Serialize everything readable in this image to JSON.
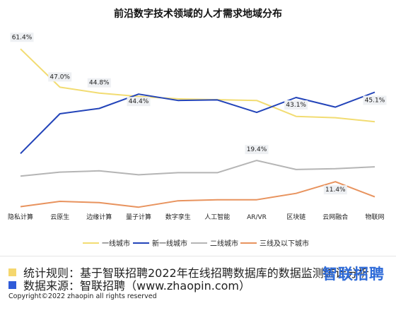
{
  "chart_data": {
    "type": "line",
    "title": "前沿数字技术领域的人才需求地域分布",
    "categories": [
      "隐私计算",
      "云原生",
      "边缘计算",
      "量子计算",
      "数字孪生",
      "人工智能",
      "AR/VR",
      "区块链",
      "云网融合",
      "物联网"
    ],
    "series": [
      {
        "name": "一线城市",
        "color": "#f2dc72",
        "values": [
          61.4,
          47.0,
          44.8,
          43.5,
          42.6,
          42.3,
          42.0,
          36.0,
          35.5,
          34.0
        ]
      },
      {
        "name": "新一线城市",
        "color": "#2344b9",
        "values": [
          22.0,
          37.0,
          39.0,
          44.4,
          42.0,
          42.2,
          37.5,
          43.1,
          39.5,
          45.1
        ]
      },
      {
        "name": "二线城市",
        "color": "#b5b5b5",
        "values": [
          13.5,
          15.0,
          15.5,
          14.0,
          14.8,
          14.8,
          19.4,
          16.0,
          16.3,
          17.0
        ]
      },
      {
        "name": "三线及以下城市",
        "color": "#e8935e",
        "values": [
          2.0,
          4.0,
          3.5,
          1.8,
          4.2,
          4.6,
          4.6,
          7.0,
          11.4,
          5.7
        ]
      }
    ],
    "data_labels": [
      {
        "series": 0,
        "index": 0,
        "text": "61.4%"
      },
      {
        "series": 0,
        "index": 1,
        "text": "47.0%"
      },
      {
        "series": 0,
        "index": 2,
        "text": "44.8%"
      },
      {
        "series": 1,
        "index": 3,
        "text": "44.4%"
      },
      {
        "series": 1,
        "index": 7,
        "text": "43.1%"
      },
      {
        "series": 1,
        "index": 9,
        "text": "45.1%"
      },
      {
        "series": 2,
        "index": 6,
        "text": "19.4%"
      },
      {
        "series": 3,
        "index": 8,
        "text": "11.4%"
      }
    ],
    "ylim": [
      0,
      66
    ],
    "grid": false,
    "legend_position": "bottom"
  },
  "footer": {
    "rule_label": "统计规则：基于智联招聘2022年在线招聘数据库的数据监测统计分析",
    "source_label": "数据来源：智联招聘（www.zhaopin.com）",
    "rule_color": "#f5d76e",
    "source_color": "#2f5bd8",
    "brand": "智联招聘",
    "copyright": "Copyright©2022 zhaopin all rights reserved"
  }
}
